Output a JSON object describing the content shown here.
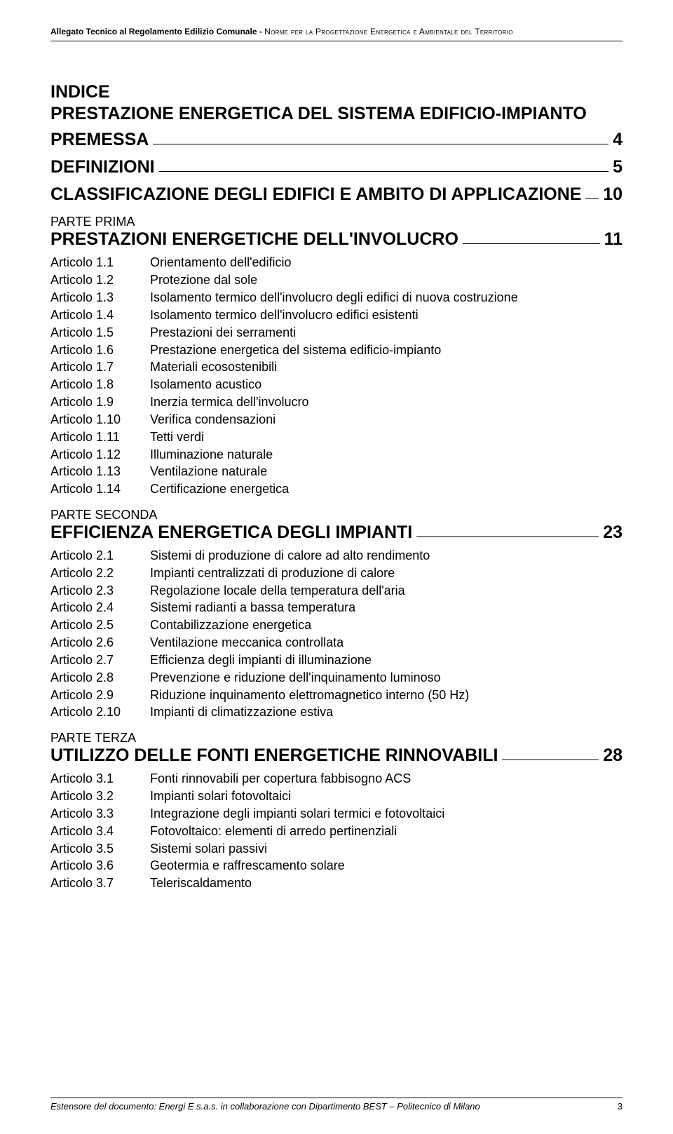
{
  "header": {
    "bold": "Allegato Tecnico al Regolamento Edilizio Comunale - ",
    "rest": "Norme per la Progettazione Energetica e Ambientale del Territorio"
  },
  "indice": "INDICE",
  "subtitle": "PRESTAZIONE ENERGETICA DEL SISTEMA EDIFICIO-IMPIANTO",
  "premessa": {
    "label": "PREMESSA",
    "page": "4"
  },
  "definizioni": {
    "label": "DEFINIZIONI",
    "page": "5"
  },
  "classificazione": {
    "label": "CLASSIFICAZIONE DEGLI EDIFICI E AMBITO DI APPLICAZIONE",
    "page": "10"
  },
  "parte1": {
    "part_label": "PARTE PRIMA",
    "heading": "PRESTAZIONI ENERGETICHE DELL'INVOLUCRO",
    "page": "11",
    "articles": [
      {
        "k": "Articolo 1.1",
        "v": "Orientamento dell'edificio"
      },
      {
        "k": "Articolo 1.2",
        "v": "Protezione dal sole"
      },
      {
        "k": "Articolo 1.3",
        "v": "Isolamento termico dell'involucro degli edifici di nuova costruzione"
      },
      {
        "k": "Articolo 1.4",
        "v": "Isolamento termico dell'involucro edifici esistenti"
      },
      {
        "k": "Articolo 1.5",
        "v": "Prestazioni dei serramenti"
      },
      {
        "k": "Articolo 1.6",
        "v": "Prestazione energetica del sistema edificio-impianto"
      },
      {
        "k": "Articolo 1.7",
        "v": "Materiali ecosostenibili"
      },
      {
        "k": "Articolo 1.8",
        "v": "Isolamento acustico"
      },
      {
        "k": "Articolo 1.9",
        "v": "Inerzia termica dell'involucro"
      },
      {
        "k": "Articolo 1.10",
        "v": "Verifica condensazioni"
      },
      {
        "k": "Articolo 1.11",
        "v": "Tetti verdi"
      },
      {
        "k": "Articolo 1.12",
        "v": "Illuminazione naturale"
      },
      {
        "k": "Articolo 1.13",
        "v": "Ventilazione naturale"
      },
      {
        "k": "Articolo 1.14",
        "v": "Certificazione energetica"
      }
    ]
  },
  "parte2": {
    "part_label": "PARTE SECONDA",
    "heading": "EFFICIENZA ENERGETICA DEGLI IMPIANTI",
    "page": "23",
    "articles": [
      {
        "k": "Articolo 2.1",
        "v": "Sistemi di produzione di calore ad alto rendimento"
      },
      {
        "k": "Articolo 2.2",
        "v": "Impianti centralizzati di produzione di calore"
      },
      {
        "k": "Articolo 2.3",
        "v": "Regolazione locale della temperatura dell'aria"
      },
      {
        "k": "Articolo 2.4",
        "v": "Sistemi radianti a bassa temperatura"
      },
      {
        "k": "Articolo 2.5",
        "v": "Contabilizzazione energetica"
      },
      {
        "k": "Articolo 2.6",
        "v": "Ventilazione meccanica controllata"
      },
      {
        "k": "Articolo 2.7",
        "v": "Efficienza degli impianti di illuminazione"
      },
      {
        "k": "Articolo 2.8",
        "v": "Prevenzione e riduzione dell'inquinamento luminoso"
      },
      {
        "k": "Articolo 2.9",
        "v": "Riduzione inquinamento elettromagnetico interno (50 Hz)"
      },
      {
        "k": "Articolo 2.10",
        "v": "Impianti di climatizzazione estiva"
      }
    ]
  },
  "parte3": {
    "part_label": "PARTE TERZA",
    "heading": "UTILIZZO DELLE FONTI ENERGETICHE RINNOVABILI",
    "page": "28",
    "articles": [
      {
        "k": "Articolo 3.1",
        "v": "Fonti rinnovabili per copertura fabbisogno ACS"
      },
      {
        "k": "Articolo 3.2",
        "v": "Impianti solari fotovoltaici"
      },
      {
        "k": "Articolo 3.3",
        "v": "Integrazione degli impianti solari termici e fotovoltaici"
      },
      {
        "k": "Articolo 3.4",
        "v": "Fotovoltaico: elementi di arredo pertinenziali"
      },
      {
        "k": "Articolo 3.5",
        "v": "Sistemi solari passivi"
      },
      {
        "k": "Articolo 3.6",
        "v": "Geotermia e raffrescamento solare"
      },
      {
        "k": "Articolo 3.7",
        "v": "Teleriscaldamento"
      }
    ]
  },
  "footer": {
    "left": "Estensore del documento: Energi E s.a.s. in collaborazione con Dipartimento BEST – Politecnico di Milano",
    "page": "3"
  }
}
